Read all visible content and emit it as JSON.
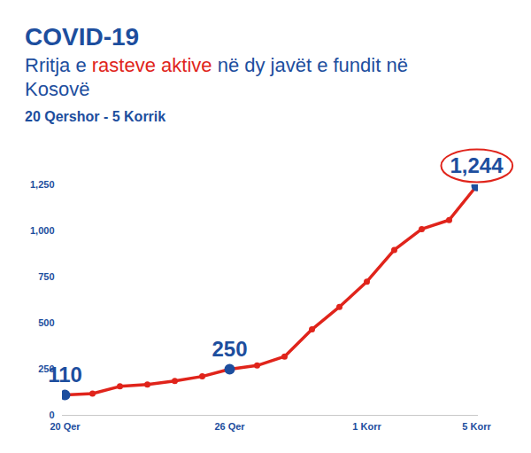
{
  "chart_data": {
    "type": "line",
    "title": "COVID-19",
    "subtitle": [
      "Rritja e ",
      "rasteve aktive",
      " në dy javët e fundit në Kosovë"
    ],
    "period": "20 Qershor - 5 Korrik",
    "categories": [
      "20 Qer",
      null,
      null,
      null,
      null,
      null,
      "26 Qer",
      null,
      null,
      null,
      null,
      "1 Korr",
      null,
      null,
      null,
      "5 Korr"
    ],
    "values": [
      110,
      118,
      157,
      167,
      186,
      211,
      250,
      270,
      319,
      466,
      588,
      725,
      897,
      1010,
      1059,
      1244
    ],
    "value_labels": [
      "110",
      null,
      null,
      null,
      null,
      null,
      "250",
      null,
      null,
      null,
      null,
      null,
      null,
      null,
      null,
      "1,244"
    ],
    "data_labels": true,
    "color": "#e0241b",
    "marker": "circle",
    "ylim": [
      0,
      1250
    ],
    "yticks": [
      0,
      250,
      500,
      750,
      {
        "value": 1000,
        "label": "1,000"
      },
      {
        "value": 1250,
        "label": "1,250"
      }
    ],
    "grid": false
  }
}
